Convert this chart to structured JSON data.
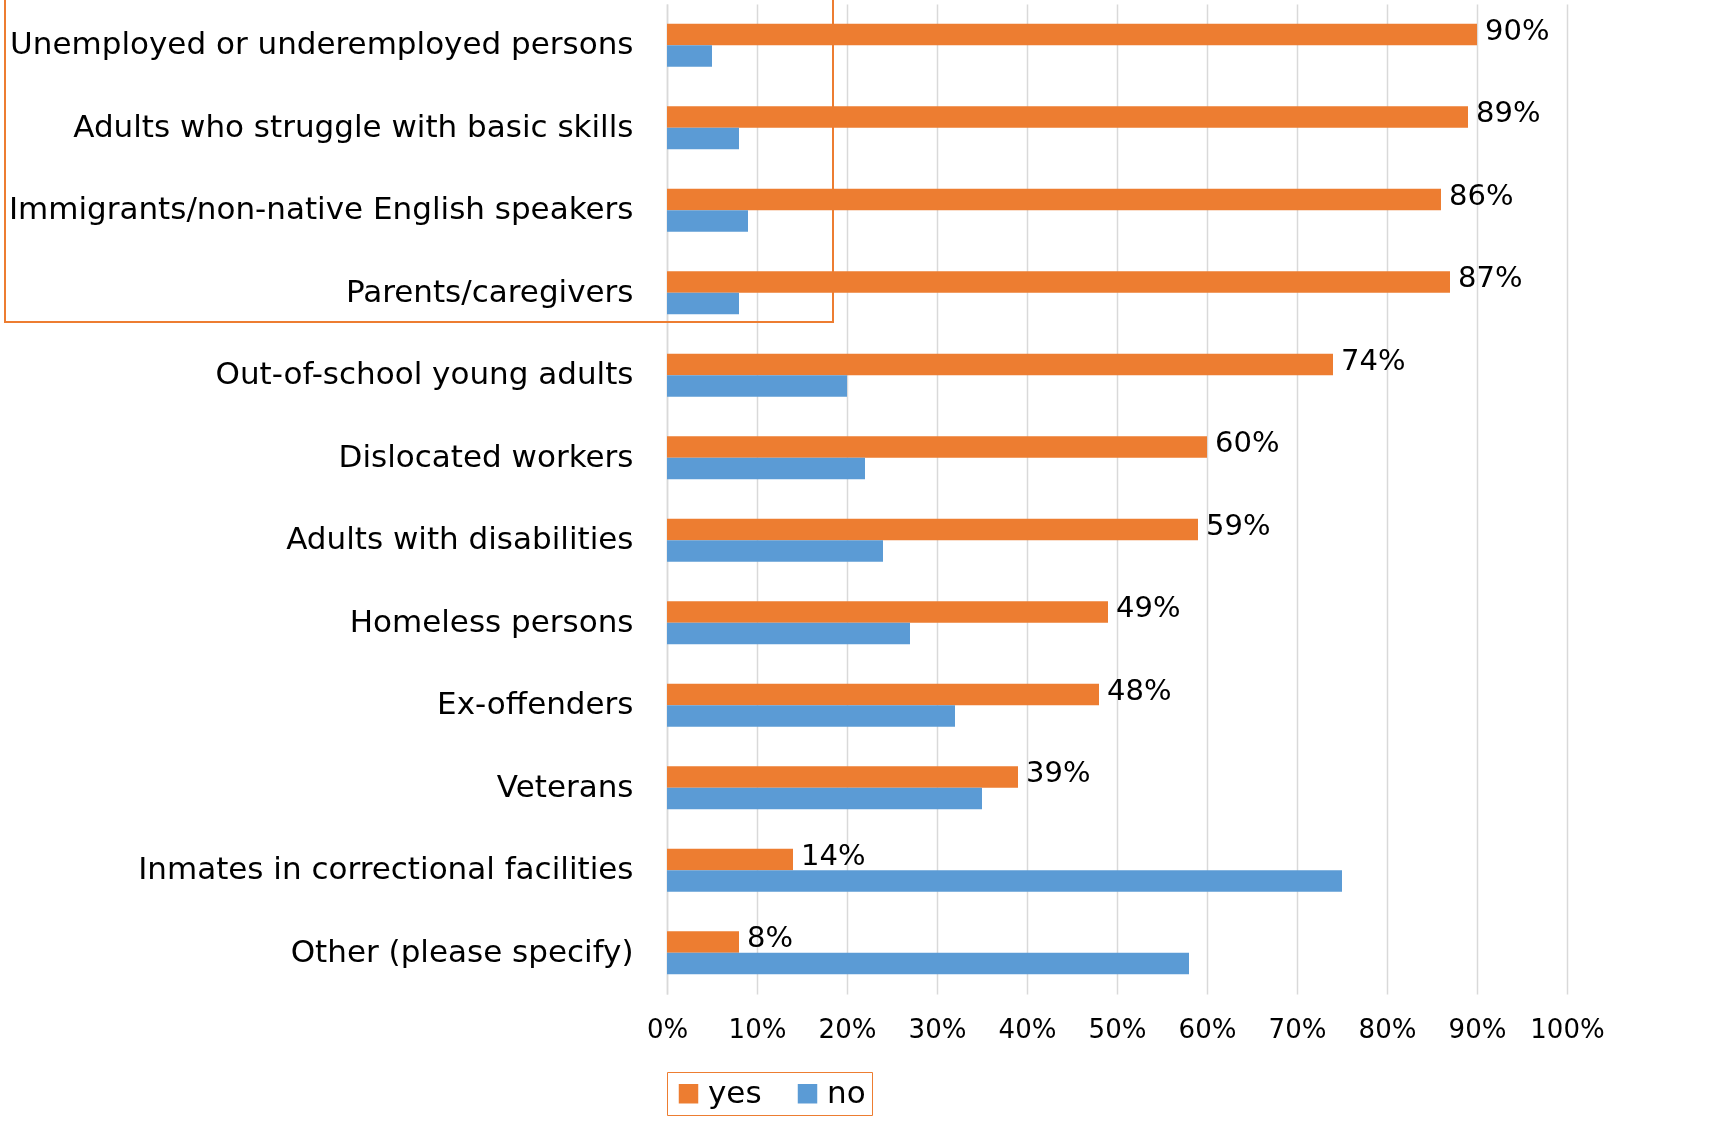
{
  "chart_data": {
    "type": "bar",
    "orientation": "horizontal",
    "categories": [
      "Unemployed or underemployed persons",
      "Adults who struggle with basic skills",
      "Immigrants/non-native English speakers",
      "Parents/caregivers",
      "Out-of-school young adults",
      "Dislocated workers",
      "Adults with disabilities",
      "Homeless persons",
      "Ex-offenders",
      "Veterans",
      "Inmates in correctional facilities",
      "Other (please specify)"
    ],
    "series": [
      {
        "name": "yes",
        "color": "#ed7d31",
        "values": [
          90,
          89,
          86,
          87,
          74,
          60,
          59,
          49,
          48,
          39,
          14,
          8
        ],
        "value_labels": [
          "90%",
          "89%",
          "86%",
          "87%",
          "74%",
          "60%",
          "59%",
          "49%",
          "48%",
          "39%",
          "14%",
          "8%"
        ]
      },
      {
        "name": "no",
        "color": "#5b9bd5",
        "values": [
          5,
          8,
          9,
          8,
          20,
          22,
          24,
          27,
          32,
          35,
          75,
          58
        ]
      }
    ],
    "xlim": [
      0,
      100
    ],
    "xticks": [
      {
        "value": 0,
        "label": "0%"
      },
      {
        "value": 10,
        "label": "10%"
      },
      {
        "value": 20,
        "label": "20%"
      },
      {
        "value": 30,
        "label": "30%"
      },
      {
        "value": 40,
        "label": "40%"
      },
      {
        "value": 50,
        "label": "50%"
      },
      {
        "value": 60,
        "label": "60%"
      },
      {
        "value": 70,
        "label": "70%"
      },
      {
        "value": 80,
        "label": "80%"
      },
      {
        "value": 90,
        "label": "90%"
      },
      {
        "value": 100,
        "label": "100%"
      }
    ],
    "grid": "x",
    "legend": "bottom"
  }
}
